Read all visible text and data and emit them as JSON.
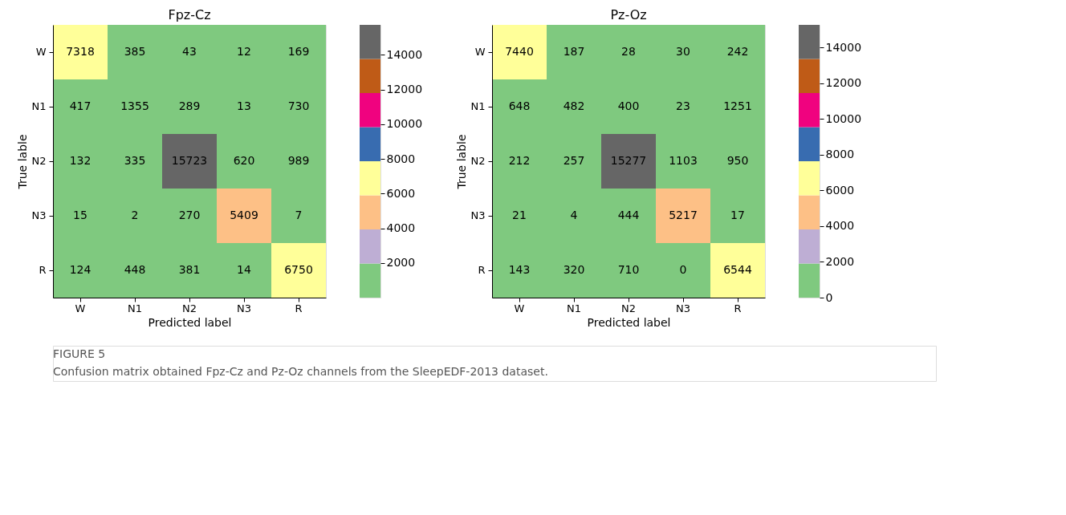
{
  "chart_data": [
    {
      "type": "heatmap",
      "title": "Fpz-Cz",
      "xlabel": "Predicted label",
      "ylabel": "True lable",
      "categories": [
        "W",
        "N1",
        "N2",
        "N3",
        "R"
      ],
      "y_categories": [
        "W",
        "N1",
        "N2",
        "N3",
        "R"
      ],
      "cells": [
        [
          7318,
          385,
          43,
          12,
          169
        ],
        [
          417,
          1355,
          289,
          13,
          730
        ],
        [
          132,
          335,
          15723,
          620,
          989
        ],
        [
          15,
          2,
          270,
          5409,
          7
        ],
        [
          124,
          448,
          381,
          14,
          6750
        ]
      ],
      "clim": [
        2,
        15723
      ],
      "cticks": [
        2000,
        4000,
        6000,
        8000,
        10000,
        12000,
        14000
      ],
      "colors": [
        "#7fc97f",
        "#beaed4",
        "#fdc086",
        "#ffff99",
        "#386cb0",
        "#f0027f",
        "#bf5b17",
        "#666666"
      ],
      "data_labels": true,
      "annotations": [
        "FIGURE 5",
        "Confusion matrix obtained Fpz-Cz and Pz-Oz channels from the SleepEDF-2013 dataset."
      ]
    },
    {
      "type": "heatmap",
      "title": "Pz-Oz",
      "xlabel": "Predicted label",
      "ylabel": "True lable",
      "categories": [
        "W",
        "N1",
        "N2",
        "N3",
        "R"
      ],
      "y_categories": [
        "W",
        "N1",
        "N2",
        "N3",
        "R"
      ],
      "cells": [
        [
          7440,
          187,
          28,
          30,
          242
        ],
        [
          648,
          482,
          400,
          23,
          1251
        ],
        [
          212,
          257,
          15277,
          1103,
          950
        ],
        [
          21,
          4,
          444,
          5217,
          17
        ],
        [
          143,
          320,
          710,
          0,
          6544
        ]
      ],
      "clim": [
        0,
        15277
      ],
      "cticks": [
        0,
        2000,
        4000,
        6000,
        8000,
        10000,
        12000,
        14000
      ],
      "colors": [
        "#7fc97f",
        "#beaed4",
        "#fdc086",
        "#ffff99",
        "#386cb0",
        "#f0027f",
        "#bf5b17",
        "#666666"
      ],
      "data_labels": true
    }
  ]
}
